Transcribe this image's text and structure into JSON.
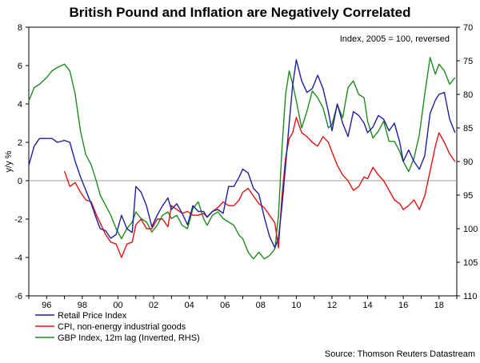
{
  "chart_data": {
    "type": "line",
    "title": "British Pound and Inflation are Negatively Correlated",
    "ylabel": "y/y %",
    "annotation": "Index, 2005 = 100, reversed",
    "source": "Source: Thomson Reuters Datastream",
    "xlim": [
      1995,
      2019
    ],
    "ylim": [
      -6,
      8
    ],
    "y2lim": [
      110,
      70
    ],
    "x_ticks": [
      1996,
      1998,
      2000,
      2002,
      2004,
      2006,
      2008,
      2010,
      2012,
      2014,
      2016,
      2018
    ],
    "x_tick_labels": [
      "96",
      "98",
      "00",
      "02",
      "04",
      "06",
      "08",
      "10",
      "12",
      "14",
      "16",
      "18"
    ],
    "y_ticks": [
      -6,
      -4,
      -2,
      0,
      2,
      4,
      6,
      8
    ],
    "y_tick_labels": [
      "-6",
      "-4",
      "-2",
      "0",
      "2",
      "4",
      "6",
      "8"
    ],
    "y2_ticks": [
      70,
      75,
      80,
      85,
      90,
      95,
      100,
      105,
      110
    ],
    "y2_tick_labels": [
      "70",
      "75",
      "80",
      "85",
      "90",
      "95",
      "100",
      "105",
      "110"
    ],
    "series": [
      {
        "name": "Retail Price Index",
        "color": "#1f1fa0",
        "axis": "left",
        "x": [
          1995.0,
          1995.3,
          1995.6,
          1996.0,
          1996.3,
          1996.6,
          1997.0,
          1997.3,
          1997.6,
          1997.9,
          1998.2,
          1998.5,
          1998.8,
          1999.0,
          1999.3,
          1999.6,
          1999.9,
          2000.2,
          2000.5,
          2000.8,
          2001.0,
          2001.3,
          2001.6,
          2001.9,
          2002.2,
          2002.5,
          2002.8,
          2003.0,
          2003.3,
          2003.6,
          2003.9,
          2004.2,
          2004.5,
          2004.8,
          2005.0,
          2005.3,
          2005.6,
          2005.9,
          2006.2,
          2006.5,
          2006.8,
          2007.0,
          2007.3,
          2007.6,
          2007.9,
          2008.2,
          2008.5,
          2008.8,
          2009.0,
          2009.2,
          2009.4,
          2009.6,
          2009.8,
          2010.0,
          2010.3,
          2010.6,
          2010.9,
          2011.2,
          2011.5,
          2011.8,
          2012.0,
          2012.3,
          2012.6,
          2012.9,
          2013.2,
          2013.5,
          2013.8,
          2014.0,
          2014.3,
          2014.6,
          2014.9,
          2015.2,
          2015.5,
          2015.8,
          2016.0,
          2016.3,
          2016.6,
          2016.9,
          2017.2,
          2017.5,
          2017.8,
          2018.0,
          2018.3,
          2018.6,
          2018.9
        ],
        "y": [
          0.8,
          1.8,
          2.2,
          2.2,
          2.2,
          2.0,
          2.1,
          2.0,
          1.0,
          0.2,
          -0.5,
          -1.2,
          -2.0,
          -2.5,
          -2.6,
          -3.0,
          -2.8,
          -1.8,
          -2.5,
          -2.7,
          -0.3,
          -0.6,
          -1.3,
          -2.4,
          -1.8,
          -1.3,
          -0.9,
          -1.5,
          -1.2,
          -1.7,
          -2.3,
          -1.3,
          -1.6,
          -1.6,
          -1.9,
          -1.6,
          -1.5,
          -1.7,
          -0.3,
          -0.3,
          0.2,
          0.6,
          0.4,
          -0.4,
          -0.7,
          -1.9,
          -2.9,
          -3.5,
          -3.0,
          -1.3,
          0.8,
          3.0,
          5.0,
          6.3,
          5.2,
          4.6,
          4.8,
          5.5,
          4.8,
          3.6,
          2.6,
          4.0,
          3.0,
          2.3,
          3.6,
          3.4,
          3.0,
          2.5,
          2.8,
          3.4,
          3.2,
          2.6,
          3.0,
          2.0,
          1.0,
          1.6,
          1.0,
          0.6,
          1.3,
          3.5,
          4.2,
          4.5,
          4.6,
          3.2,
          2.5
        ]
      },
      {
        "name": "CPI, non-energy industrial goods",
        "color": "#e01414",
        "axis": "left",
        "x": [
          1997.0,
          1997.3,
          1997.6,
          1997.9,
          1998.2,
          1998.5,
          1998.8,
          1999.0,
          1999.3,
          1999.6,
          1999.9,
          2000.2,
          2000.5,
          2000.8,
          2001.0,
          2001.3,
          2001.6,
          2001.9,
          2002.2,
          2002.5,
          2002.8,
          2003.0,
          2003.3,
          2003.6,
          2003.9,
          2004.2,
          2004.5,
          2004.8,
          2005.0,
          2005.3,
          2005.6,
          2005.9,
          2006.2,
          2006.5,
          2006.8,
          2007.0,
          2007.3,
          2007.6,
          2007.9,
          2008.2,
          2008.5,
          2008.8,
          2009.0,
          2009.2,
          2009.4,
          2009.6,
          2009.8,
          2010.0,
          2010.3,
          2010.6,
          2010.9,
          2011.2,
          2011.5,
          2011.8,
          2012.0,
          2012.3,
          2012.6,
          2012.9,
          2013.2,
          2013.5,
          2013.8,
          2014.0,
          2014.3,
          2014.6,
          2014.9,
          2015.2,
          2015.5,
          2015.8,
          2016.0,
          2016.3,
          2016.6,
          2016.9,
          2017.2,
          2017.5,
          2017.8,
          2018.0,
          2018.3,
          2018.6,
          2018.9
        ],
        "y": [
          0.5,
          -0.3,
          -0.1,
          -0.6,
          -1.0,
          -1.1,
          -1.8,
          -2.2,
          -2.8,
          -3.2,
          -3.3,
          -4.0,
          -3.3,
          -3.2,
          -2.3,
          -2.0,
          -2.5,
          -2.5,
          -2.0,
          -2.0,
          -2.4,
          -1.3,
          -1.5,
          -1.7,
          -1.6,
          -1.8,
          -1.8,
          -1.7,
          -1.9,
          -1.6,
          -1.4,
          -1.1,
          -1.3,
          -1.3,
          -1.0,
          -0.6,
          -0.4,
          -0.8,
          -1.2,
          -1.4,
          -1.8,
          -2.2,
          -3.5,
          -0.8,
          1.2,
          2.2,
          2.5,
          3.3,
          2.5,
          2.3,
          2.0,
          1.8,
          2.3,
          2.0,
          1.5,
          0.8,
          0.3,
          0.0,
          -0.5,
          -0.3,
          0.2,
          0.1,
          0.7,
          0.3,
          0.0,
          -0.5,
          -1.0,
          -1.2,
          -1.5,
          -1.3,
          -1.0,
          -1.5,
          -0.8,
          0.5,
          1.8,
          2.5,
          2.0,
          1.4,
          1.0
        ]
      },
      {
        "name": "GBP Index, 12m lag (Inverted, RHS)",
        "color": "#1e8c1e",
        "axis": "right",
        "x": [
          1995.0,
          1995.3,
          1995.6,
          1996.0,
          1996.3,
          1996.6,
          1997.0,
          1997.3,
          1997.6,
          1997.9,
          1998.2,
          1998.5,
          1998.8,
          1999.0,
          1999.3,
          1999.6,
          1999.9,
          2000.2,
          2000.5,
          2000.8,
          2001.0,
          2001.3,
          2001.6,
          2001.9,
          2002.2,
          2002.5,
          2002.8,
          2003.0,
          2003.3,
          2003.6,
          2003.9,
          2004.2,
          2004.5,
          2004.8,
          2005.0,
          2005.3,
          2005.6,
          2005.9,
          2006.2,
          2006.5,
          2006.8,
          2007.0,
          2007.3,
          2007.6,
          2007.9,
          2008.2,
          2008.5,
          2008.8,
          2009.0,
          2009.2,
          2009.4,
          2009.6,
          2009.8,
          2010.0,
          2010.3,
          2010.6,
          2010.9,
          2011.2,
          2011.5,
          2011.8,
          2012.0,
          2012.3,
          2012.6,
          2012.9,
          2013.2,
          2013.5,
          2013.8,
          2014.0,
          2014.3,
          2014.6,
          2014.9,
          2015.2,
          2015.5,
          2015.8,
          2016.0,
          2016.3,
          2016.6,
          2016.9,
          2017.2,
          2017.5,
          2017.8,
          2018.0,
          2018.3,
          2018.6,
          2018.9
        ],
        "y": [
          81.0,
          79.0,
          78.5,
          77.5,
          76.5,
          76.0,
          75.5,
          76.5,
          80.0,
          85.5,
          89.0,
          90.5,
          93.0,
          95.0,
          96.5,
          98.0,
          100.0,
          101.5,
          100.0,
          99.0,
          97.5,
          98.5,
          99.0,
          100.5,
          99.5,
          98.0,
          97.5,
          98.5,
          98.0,
          99.5,
          100.0,
          97.0,
          96.0,
          98.5,
          99.5,
          98.0,
          97.5,
          98.5,
          99.0,
          99.5,
          101.0,
          101.5,
          103.5,
          104.5,
          103.5,
          104.5,
          104.0,
          103.0,
          98.0,
          88.0,
          80.0,
          76.5,
          78.5,
          81.0,
          85.0,
          82.5,
          79.5,
          80.5,
          82.0,
          85.0,
          84.5,
          81.5,
          83.5,
          79.0,
          78.0,
          80.0,
          80.5,
          84.0,
          86.5,
          85.5,
          84.0,
          87.0,
          87.0,
          88.5,
          90.0,
          91.5,
          89.5,
          86.0,
          80.0,
          74.5,
          77.0,
          75.5,
          76.5,
          78.5,
          77.5
        ]
      }
    ]
  }
}
